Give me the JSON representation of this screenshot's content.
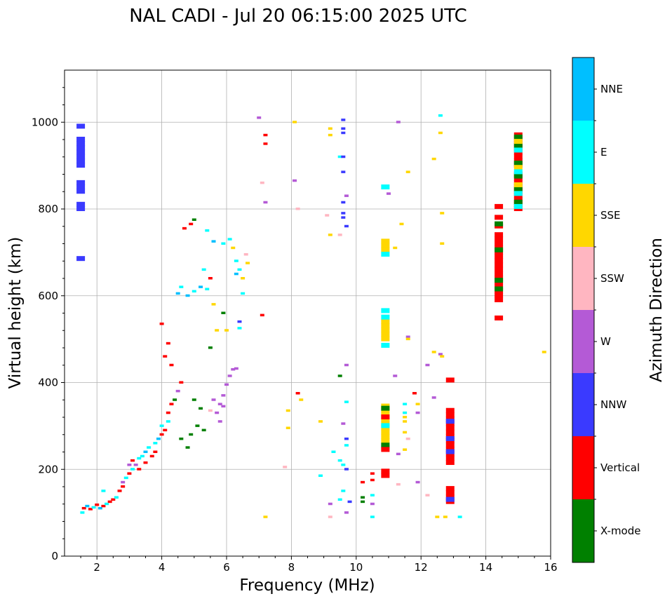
{
  "chart_data": {
    "type": "scatter",
    "title": "NAL CADI - Jul 20 06:15:00 2025 UTC",
    "xlabel": "Frequency (MHz)",
    "ylabel": "Virtual height (km)",
    "xlim": [
      1,
      16
    ],
    "ylim": [
      0,
      1120
    ],
    "xticks": [
      2,
      4,
      6,
      8,
      10,
      12,
      14,
      16
    ],
    "yticks": [
      0,
      200,
      400,
      600,
      800,
      1000
    ],
    "grid": true,
    "colorbar": {
      "label": "Azimuth Direction",
      "categories": [
        {
          "name": "X-mode",
          "color": "#008000"
        },
        {
          "name": "Vertical",
          "color": "#ff0000"
        },
        {
          "name": "NNW",
          "color": "#3a3aff"
        },
        {
          "name": "W",
          "color": "#b45ad6"
        },
        {
          "name": "SSW",
          "color": "#ffb6c1"
        },
        {
          "name": "SSE",
          "color": "#ffd700"
        },
        {
          "name": "E",
          "color": "#00ffff"
        },
        {
          "name": "NNE",
          "color": "#00bfff"
        }
      ]
    },
    "columns": [
      {
        "f": 1.5,
        "c": "NNW",
        "h": [
          990,
          960,
          950,
          940,
          930,
          920,
          910,
          900,
          860,
          850,
          840,
          810,
          800,
          685
        ]
      },
      {
        "f": 12.9,
        "c": "Vertical",
        "h": [
          405,
          335,
          325,
          315,
          305,
          295,
          285,
          275,
          265,
          255,
          245,
          235,
          225,
          215,
          155,
          145,
          135,
          125
        ]
      },
      {
        "f": 12.9,
        "c": "NNW",
        "h": [
          310,
          270,
          240,
          130
        ]
      },
      {
        "f": 14.4,
        "c": "Vertical",
        "h": [
          805,
          780,
          760,
          740,
          730,
          720,
          710,
          700,
          690,
          680,
          670,
          660,
          650,
          640,
          630,
          620,
          610,
          600,
          590,
          548
        ]
      },
      {
        "f": 14.4,
        "c": "X-mode",
        "h": [
          765,
          705,
          635,
          615
        ]
      },
      {
        "f": 15.0,
        "c": "Vertical",
        "h": [
          970,
          960,
          950,
          940,
          930,
          920,
          910,
          900,
          880,
          870,
          860,
          850,
          840,
          830,
          820,
          810,
          800
        ]
      },
      {
        "f": 15.0,
        "c": "X-mode",
        "h": [
          965,
          945,
          905,
          875,
          845,
          815
        ]
      },
      {
        "f": 15.0,
        "c": "SSE",
        "h": [
          955,
          895,
          855
        ]
      },
      {
        "f": 15.0,
        "c": "E",
        "h": [
          935,
          885,
          835,
          805
        ]
      },
      {
        "f": 10.9,
        "c": "SSE",
        "h": [
          725,
          715,
          705,
          540,
          530,
          520,
          510,
          500,
          345,
          335,
          325,
          315,
          305,
          295,
          285,
          275,
          265
        ]
      },
      {
        "f": 10.9,
        "c": "E",
        "h": [
          850,
          695,
          565,
          550,
          485,
          300,
          250
        ]
      },
      {
        "f": 10.9,
        "c": "X-mode",
        "h": [
          340,
          255
        ]
      },
      {
        "f": 10.9,
        "c": "Vertical",
        "h": [
          320,
          245,
          195,
          185
        ]
      }
    ],
    "points": [
      {
        "f": 1.55,
        "h": 100,
        "c": "E"
      },
      {
        "f": 1.6,
        "h": 110,
        "c": "Vertical"
      },
      {
        "f": 1.7,
        "h": 115,
        "c": "NNE"
      },
      {
        "f": 1.8,
        "h": 108,
        "c": "Vertical"
      },
      {
        "f": 1.9,
        "h": 112,
        "c": "E"
      },
      {
        "f": 2.0,
        "h": 118,
        "c": "Vertical"
      },
      {
        "f": 2.1,
        "h": 110,
        "c": "NNE"
      },
      {
        "f": 2.2,
        "h": 115,
        "c": "Vertical"
      },
      {
        "f": 2.2,
        "h": 150,
        "c": "E"
      },
      {
        "f": 2.3,
        "h": 120,
        "c": "E"
      },
      {
        "f": 2.4,
        "h": 125,
        "c": "Vertical"
      },
      {
        "f": 2.5,
        "h": 130,
        "c": "Vertical"
      },
      {
        "f": 2.6,
        "h": 135,
        "c": "E"
      },
      {
        "f": 2.7,
        "h": 150,
        "c": "Vertical"
      },
      {
        "f": 2.8,
        "h": 170,
        "c": "W"
      },
      {
        "f": 2.8,
        "h": 160,
        "c": "Vertical"
      },
      {
        "f": 2.9,
        "h": 180,
        "c": "E"
      },
      {
        "f": 3.0,
        "h": 190,
        "c": "Vertical"
      },
      {
        "f": 3.0,
        "h": 210,
        "c": "W"
      },
      {
        "f": 3.1,
        "h": 200,
        "c": "E"
      },
      {
        "f": 3.1,
        "h": 220,
        "c": "Vertical"
      },
      {
        "f": 3.2,
        "h": 210,
        "c": "W"
      },
      {
        "f": 3.3,
        "h": 225,
        "c": "E"
      },
      {
        "f": 3.3,
        "h": 200,
        "c": "Vertical"
      },
      {
        "f": 3.4,
        "h": 230,
        "c": "E"
      },
      {
        "f": 3.5,
        "h": 240,
        "c": "NNE"
      },
      {
        "f": 3.5,
        "h": 215,
        "c": "Vertical"
      },
      {
        "f": 3.6,
        "h": 250,
        "c": "E"
      },
      {
        "f": 3.7,
        "h": 230,
        "c": "Vertical"
      },
      {
        "f": 3.8,
        "h": 260,
        "c": "E"
      },
      {
        "f": 3.8,
        "h": 240,
        "c": "Vertical"
      },
      {
        "f": 3.9,
        "h": 270,
        "c": "NNE"
      },
      {
        "f": 4.0,
        "h": 280,
        "c": "Vertical"
      },
      {
        "f": 4.0,
        "h": 300,
        "c": "E"
      },
      {
        "f": 4.1,
        "h": 290,
        "c": "Vertical"
      },
      {
        "f": 4.2,
        "h": 310,
        "c": "E"
      },
      {
        "f": 4.2,
        "h": 330,
        "c": "Vertical"
      },
      {
        "f": 4.3,
        "h": 350,
        "c": "Vertical"
      },
      {
        "f": 4.3,
        "h": 440,
        "c": "Vertical"
      },
      {
        "f": 4.4,
        "h": 360,
        "c": "X-mode"
      },
      {
        "f": 4.5,
        "h": 380,
        "c": "W"
      },
      {
        "f": 4.6,
        "h": 400,
        "c": "Vertical"
      },
      {
        "f": 4.1,
        "h": 460,
        "c": "Vertical"
      },
      {
        "f": 4.2,
        "h": 490,
        "c": "Vertical"
      },
      {
        "f": 4.0,
        "h": 535,
        "c": "Vertical"
      },
      {
        "f": 4.5,
        "h": 605,
        "c": "NNE"
      },
      {
        "f": 4.6,
        "h": 620,
        "c": "E"
      },
      {
        "f": 4.8,
        "h": 600,
        "c": "NNE"
      },
      {
        "f": 5.0,
        "h": 610,
        "c": "E"
      },
      {
        "f": 5.2,
        "h": 620,
        "c": "NNE"
      },
      {
        "f": 5.4,
        "h": 615,
        "c": "E"
      },
      {
        "f": 5.5,
        "h": 640,
        "c": "Vertical"
      },
      {
        "f": 5.3,
        "h": 660,
        "c": "E"
      },
      {
        "f": 4.7,
        "h": 755,
        "c": "Vertical"
      },
      {
        "f": 5.0,
        "h": 775,
        "c": "X-mode"
      },
      {
        "f": 4.9,
        "h": 765,
        "c": "Vertical"
      },
      {
        "f": 5.4,
        "h": 750,
        "c": "E"
      },
      {
        "f": 5.6,
        "h": 725,
        "c": "NNE"
      },
      {
        "f": 5.9,
        "h": 720,
        "c": "E"
      },
      {
        "f": 6.1,
        "h": 730,
        "c": "E"
      },
      {
        "f": 6.2,
        "h": 710,
        "c": "SSE"
      },
      {
        "f": 6.3,
        "h": 680,
        "c": "E"
      },
      {
        "f": 6.4,
        "h": 660,
        "c": "E"
      },
      {
        "f": 6.5,
        "h": 640,
        "c": "SSE"
      },
      {
        "f": 6.3,
        "h": 650,
        "c": "NNE"
      },
      {
        "f": 6.5,
        "h": 605,
        "c": "E"
      },
      {
        "f": 6.6,
        "h": 695,
        "c": "SSW"
      },
      {
        "f": 6.65,
        "h": 675,
        "c": "SSE"
      },
      {
        "f": 6.4,
        "h": 540,
        "c": "NNW"
      },
      {
        "f": 6.4,
        "h": 525,
        "c": "E"
      },
      {
        "f": 6.2,
        "h": 430,
        "c": "W"
      },
      {
        "f": 6.3,
        "h": 432,
        "c": "W"
      },
      {
        "f": 6.1,
        "h": 415,
        "c": "W"
      },
      {
        "f": 6.0,
        "h": 395,
        "c": "W"
      },
      {
        "f": 5.9,
        "h": 370,
        "c": "W"
      },
      {
        "f": 5.8,
        "h": 350,
        "c": "W"
      },
      {
        "f": 5.7,
        "h": 330,
        "c": "W"
      },
      {
        "f": 5.8,
        "h": 310,
        "c": "W"
      },
      {
        "f": 5.9,
        "h": 345,
        "c": "W"
      },
      {
        "f": 5.6,
        "h": 360,
        "c": "W"
      },
      {
        "f": 5.5,
        "h": 335,
        "c": "SSW"
      },
      {
        "f": 5.0,
        "h": 360,
        "c": "X-mode"
      },
      {
        "f": 5.2,
        "h": 340,
        "c": "X-mode"
      },
      {
        "f": 5.1,
        "h": 300,
        "c": "X-mode"
      },
      {
        "f": 4.9,
        "h": 280,
        "c": "X-mode"
      },
      {
        "f": 4.8,
        "h": 250,
        "c": "X-mode"
      },
      {
        "f": 4.6,
        "h": 270,
        "c": "X-mode"
      },
      {
        "f": 5.3,
        "h": 290,
        "c": "X-mode"
      },
      {
        "f": 5.9,
        "h": 560,
        "c": "X-mode"
      },
      {
        "f": 6.0,
        "h": 520,
        "c": "SSE"
      },
      {
        "f": 5.7,
        "h": 520,
        "c": "SSE"
      },
      {
        "f": 5.5,
        "h": 480,
        "c": "X-mode"
      },
      {
        "f": 5.6,
        "h": 580,
        "c": "SSE"
      },
      {
        "f": 7.0,
        "h": 1010,
        "c": "W"
      },
      {
        "f": 7.2,
        "h": 970,
        "c": "Vertical"
      },
      {
        "f": 7.2,
        "h": 950,
        "c": "Vertical"
      },
      {
        "f": 7.2,
        "h": 815,
        "c": "W"
      },
      {
        "f": 7.1,
        "h": 860,
        "c": "SSW"
      },
      {
        "f": 7.1,
        "h": 555,
        "c": "Vertical"
      },
      {
        "f": 7.2,
        "h": 90,
        "c": "SSE"
      },
      {
        "f": 8.1,
        "h": 1000,
        "c": "SSE"
      },
      {
        "f": 8.1,
        "h": 865,
        "c": "W"
      },
      {
        "f": 8.2,
        "h": 800,
        "c": "SSW"
      },
      {
        "f": 8.2,
        "h": 375,
        "c": "Vertical"
      },
      {
        "f": 8.3,
        "h": 360,
        "c": "SSE"
      },
      {
        "f": 7.9,
        "h": 335,
        "c": "SSE"
      },
      {
        "f": 7.9,
        "h": 295,
        "c": "SSE"
      },
      {
        "f": 7.8,
        "h": 205,
        "c": "SSW"
      },
      {
        "f": 8.9,
        "h": 310,
        "c": "SSE"
      },
      {
        "f": 8.9,
        "h": 185,
        "c": "E"
      },
      {
        "f": 9.1,
        "h": 785,
        "c": "SSW"
      },
      {
        "f": 9.2,
        "h": 985,
        "c": "SSE"
      },
      {
        "f": 9.2,
        "h": 970,
        "c": "SSE"
      },
      {
        "f": 9.2,
        "h": 740,
        "c": "SSE"
      },
      {
        "f": 9.5,
        "h": 920,
        "c": "E"
      },
      {
        "f": 9.5,
        "h": 740,
        "c": "SSW"
      },
      {
        "f": 9.6,
        "h": 1005,
        "c": "NNW"
      },
      {
        "f": 9.6,
        "h": 985,
        "c": "NNW"
      },
      {
        "f": 9.6,
        "h": 975,
        "c": "NNW"
      },
      {
        "f": 9.6,
        "h": 920,
        "c": "NNW"
      },
      {
        "f": 9.6,
        "h": 885,
        "c": "NNW"
      },
      {
        "f": 9.7,
        "h": 830,
        "c": "W"
      },
      {
        "f": 9.6,
        "h": 815,
        "c": "NNW"
      },
      {
        "f": 9.6,
        "h": 790,
        "c": "NNW"
      },
      {
        "f": 9.6,
        "h": 780,
        "c": "NNW"
      },
      {
        "f": 9.7,
        "h": 760,
        "c": "NNW"
      },
      {
        "f": 9.7,
        "h": 440,
        "c": "W"
      },
      {
        "f": 9.5,
        "h": 415,
        "c": "X-mode"
      },
      {
        "f": 9.7,
        "h": 355,
        "c": "E"
      },
      {
        "f": 9.6,
        "h": 305,
        "c": "W"
      },
      {
        "f": 9.7,
        "h": 270,
        "c": "NNW"
      },
      {
        "f": 9.7,
        "h": 255,
        "c": "E"
      },
      {
        "f": 9.3,
        "h": 240,
        "c": "E"
      },
      {
        "f": 9.5,
        "h": 220,
        "c": "E"
      },
      {
        "f": 9.6,
        "h": 210,
        "c": "E"
      },
      {
        "f": 9.7,
        "h": 200,
        "c": "NNW"
      },
      {
        "f": 9.6,
        "h": 150,
        "c": "E"
      },
      {
        "f": 9.5,
        "h": 130,
        "c": "E"
      },
      {
        "f": 9.8,
        "h": 125,
        "c": "NNW"
      },
      {
        "f": 9.2,
        "h": 120,
        "c": "W"
      },
      {
        "f": 9.2,
        "h": 90,
        "c": "SSW"
      },
      {
        "f": 9.7,
        "h": 100,
        "c": "W"
      },
      {
        "f": 10.2,
        "h": 170,
        "c": "Vertical"
      },
      {
        "f": 10.2,
        "h": 135,
        "c": "X-mode"
      },
      {
        "f": 10.2,
        "h": 125,
        "c": "X-mode"
      },
      {
        "f": 10.5,
        "h": 190,
        "c": "Vertical"
      },
      {
        "f": 10.5,
        "h": 175,
        "c": "Vertical"
      },
      {
        "f": 10.5,
        "h": 140,
        "c": "E"
      },
      {
        "f": 10.5,
        "h": 120,
        "c": "W"
      },
      {
        "f": 10.5,
        "h": 90,
        "c": "E"
      },
      {
        "f": 11.0,
        "h": 835,
        "c": "W"
      },
      {
        "f": 11.2,
        "h": 710,
        "c": "SSE"
      },
      {
        "f": 11.3,
        "h": 1000,
        "c": "W"
      },
      {
        "f": 11.4,
        "h": 765,
        "c": "SSE"
      },
      {
        "f": 11.2,
        "h": 415,
        "c": "W"
      },
      {
        "f": 11.3,
        "h": 235,
        "c": "W"
      },
      {
        "f": 11.3,
        "h": 165,
        "c": "SSW"
      },
      {
        "f": 11.6,
        "h": 505,
        "c": "W"
      },
      {
        "f": 11.6,
        "h": 500,
        "c": "SSE"
      },
      {
        "f": 11.6,
        "h": 885,
        "c": "SSE"
      },
      {
        "f": 11.5,
        "h": 350,
        "c": "E"
      },
      {
        "f": 11.5,
        "h": 330,
        "c": "E"
      },
      {
        "f": 11.5,
        "h": 320,
        "c": "SSE"
      },
      {
        "f": 11.5,
        "h": 310,
        "c": "SSE"
      },
      {
        "f": 11.5,
        "h": 285,
        "c": "SSE"
      },
      {
        "f": 11.6,
        "h": 270,
        "c": "SSW"
      },
      {
        "f": 11.5,
        "h": 245,
        "c": "SSE"
      },
      {
        "f": 11.8,
        "h": 375,
        "c": "Vertical"
      },
      {
        "f": 11.9,
        "h": 350,
        "c": "SSE"
      },
      {
        "f": 11.9,
        "h": 330,
        "c": "W"
      },
      {
        "f": 11.9,
        "h": 170,
        "c": "W"
      },
      {
        "f": 12.2,
        "h": 440,
        "c": "W"
      },
      {
        "f": 12.2,
        "h": 140,
        "c": "SSW"
      },
      {
        "f": 12.4,
        "h": 470,
        "c": "SSE"
      },
      {
        "f": 12.4,
        "h": 365,
        "c": "W"
      },
      {
        "f": 12.4,
        "h": 915,
        "c": "SSE"
      },
      {
        "f": 12.6,
        "h": 1015,
        "c": "E"
      },
      {
        "f": 12.6,
        "h": 975,
        "c": "SSE"
      },
      {
        "f": 12.65,
        "h": 790,
        "c": "SSE"
      },
      {
        "f": 12.65,
        "h": 720,
        "c": "SSE"
      },
      {
        "f": 12.6,
        "h": 465,
        "c": "W"
      },
      {
        "f": 12.65,
        "h": 460,
        "c": "SSE"
      },
      {
        "f": 12.5,
        "h": 90,
        "c": "SSE"
      },
      {
        "f": 12.75,
        "h": 90,
        "c": "SSE"
      },
      {
        "f": 13.2,
        "h": 90,
        "c": "E"
      },
      {
        "f": 15.8,
        "h": 470,
        "c": "SSE"
      }
    ]
  }
}
